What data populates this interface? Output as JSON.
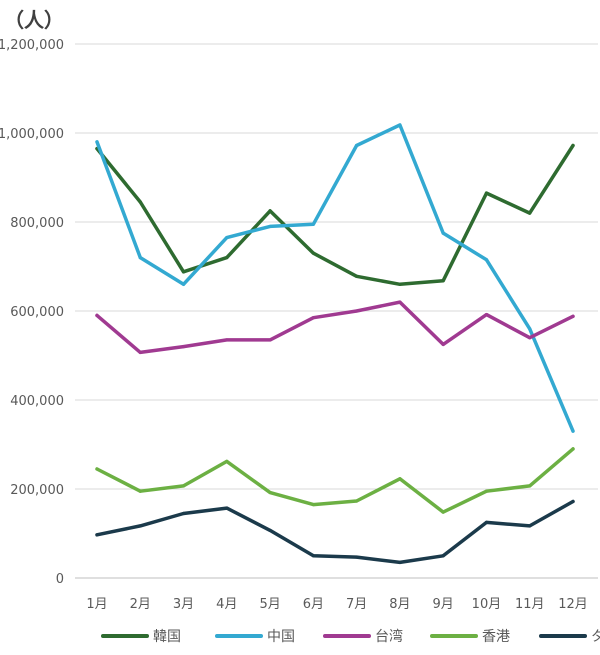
{
  "chart_data": {
    "type": "line",
    "title": "",
    "unit_label": "（人）",
    "xlabel": "",
    "ylabel": "",
    "ylim": [
      0,
      1200000
    ],
    "yticks": [
      {
        "value": 0,
        "label": "0"
      },
      {
        "value": 200000,
        "label": "200,000"
      },
      {
        "value": 400000,
        "label": "400,000"
      },
      {
        "value": 600000,
        "label": "600,000"
      },
      {
        "value": 800000,
        "label": "800,000"
      },
      {
        "value": 1000000,
        "label": "1,000,000"
      },
      {
        "value": 1200000,
        "label": "1,200,000"
      }
    ],
    "grid": true,
    "legend_position": "bottom",
    "categories": [
      "1月",
      "2月",
      "3月",
      "4月",
      "5月",
      "6月",
      "7月",
      "8月",
      "9月",
      "10月",
      "11月",
      "12月"
    ],
    "series": [
      {
        "name": "韓国",
        "color": "#2e6b30",
        "values": [
          965000,
          845000,
          688000,
          720000,
          825000,
          730000,
          678000,
          660000,
          668000,
          865000,
          820000,
          972000
        ]
      },
      {
        "name": "中国",
        "color": "#33a9d1",
        "values": [
          980000,
          720000,
          660000,
          765000,
          790000,
          795000,
          972000,
          1018000,
          775000,
          715000,
          560000,
          330000
        ]
      },
      {
        "name": "台湾",
        "color": "#a03a91",
        "values": [
          590000,
          507000,
          520000,
          535000,
          535000,
          585000,
          600000,
          620000,
          525000,
          592000,
          540000,
          588000
        ]
      },
      {
        "name": "香港",
        "color": "#6cb043",
        "values": [
          245000,
          195000,
          207000,
          262000,
          192000,
          165000,
          173000,
          223000,
          148000,
          195000,
          207000,
          290000
        ]
      },
      {
        "name": "タイ",
        "color": "#1b3a4b",
        "values": [
          97000,
          117000,
          145000,
          157000,
          107000,
          50000,
          47000,
          35000,
          50000,
          125000,
          117000,
          172000
        ]
      }
    ]
  }
}
